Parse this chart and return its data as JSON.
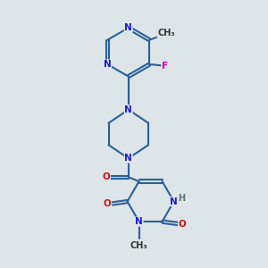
{
  "background_color": "#dde5e8",
  "bond_color": "#2a6099",
  "bond_width": 1.5,
  "atom_colors": {
    "N": "#1a1ad4",
    "O": "#cc1111",
    "F": "#cc00aa",
    "C": "#000000",
    "H": "#557777"
  },
  "font_size_atom": 7.5
}
